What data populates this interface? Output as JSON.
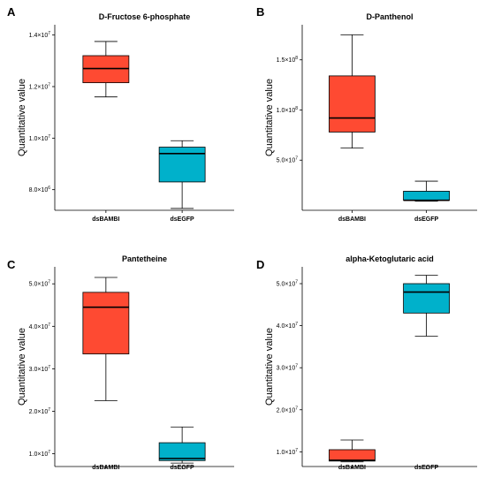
{
  "colors": {
    "dsBAMBI": "#fe4a32",
    "dsEGFP": "#00b1cb"
  },
  "chart_data": [
    {
      "letter": "A",
      "type": "box",
      "title": "D-Fructose 6-phosphate",
      "ylabel": "Quantitative value",
      "categories": [
        "dsBAMBI",
        "dsEGFP"
      ],
      "ylim": [
        7200000,
        14400000
      ],
      "yticks": [
        {
          "value": 8000000,
          "mantissa": "8.0×10",
          "exp": "6"
        },
        {
          "value": 10000000,
          "mantissa": "1.0×10",
          "exp": "7"
        },
        {
          "value": 12000000,
          "mantissa": "1.2×10",
          "exp": "7"
        },
        {
          "value": 14000000,
          "mantissa": "1.4×10",
          "exp": "7"
        }
      ],
      "boxes": [
        {
          "category": "dsBAMBI",
          "min": 11600000,
          "q1": 12150000,
          "median": 12700000,
          "q3": 13200000,
          "max": 13750000
        },
        {
          "category": "dsEGFP",
          "min": 7270000,
          "q1": 8300000,
          "median": 9400000,
          "q3": 9650000,
          "max": 9900000
        }
      ]
    },
    {
      "letter": "B",
      "type": "box",
      "title": "D-Panthenol",
      "ylabel": "Quantitative value",
      "categories": [
        "dsBAMBI",
        "dsEGFP"
      ],
      "ylim": [
        0,
        185000000
      ],
      "yticks": [
        {
          "value": 50000000,
          "mantissa": "5.0×10",
          "exp": "7"
        },
        {
          "value": 100000000,
          "mantissa": "1.0×10",
          "exp": "8"
        },
        {
          "value": 150000000,
          "mantissa": "1.5×10",
          "exp": "8"
        }
      ],
      "boxes": [
        {
          "category": "dsBAMBI",
          "min": 62000000,
          "q1": 78000000,
          "median": 92000000,
          "q3": 134000000,
          "max": 175000000
        },
        {
          "category": "dsEGFP",
          "min": 9000000,
          "q1": 10000000,
          "median": 10000000,
          "q3": 19000000,
          "max": 29000000
        }
      ]
    },
    {
      "letter": "C",
      "type": "box",
      "title": "Pantetheine",
      "ylabel": "Quantitative value",
      "categories": [
        "dsBAMBI",
        "dsEGFP"
      ],
      "ylim": [
        7000000,
        54000000
      ],
      "yticks": [
        {
          "value": 10000000,
          "mantissa": "1.0×10",
          "exp": "7"
        },
        {
          "value": 20000000,
          "mantissa": "2.0×10",
          "exp": "7"
        },
        {
          "value": 30000000,
          "mantissa": "3.0×10",
          "exp": "7"
        },
        {
          "value": 40000000,
          "mantissa": "4.0×10",
          "exp": "7"
        },
        {
          "value": 50000000,
          "mantissa": "5.0×10",
          "exp": "7"
        }
      ],
      "boxes": [
        {
          "category": "dsBAMBI",
          "min": 22500000,
          "q1": 33500000,
          "median": 44500000,
          "q3": 48000000,
          "max": 51500000
        },
        {
          "category": "dsEGFP",
          "min": 7800000,
          "q1": 8400000,
          "median": 8900000,
          "q3": 12600000,
          "max": 16300000
        }
      ]
    },
    {
      "letter": "D",
      "type": "box",
      "title": "alpha-Ketoglutaric acid",
      "ylabel": "Quantitative value",
      "categories": [
        "dsBAMBI",
        "dsEGFP"
      ],
      "ylim": [
        6500000,
        54000000
      ],
      "yticks": [
        {
          "value": 10000000,
          "mantissa": "1.0×10",
          "exp": "7"
        },
        {
          "value": 20000000,
          "mantissa": "2.0×10",
          "exp": "7"
        },
        {
          "value": 30000000,
          "mantissa": "3.0×10",
          "exp": "7"
        },
        {
          "value": 40000000,
          "mantissa": "4.0×10",
          "exp": "7"
        },
        {
          "value": 50000000,
          "mantissa": "5.0×10",
          "exp": "7"
        }
      ],
      "boxes": [
        {
          "category": "dsBAMBI",
          "min": 7600000,
          "q1": 7800000,
          "median": 8000000,
          "q3": 10500000,
          "max": 12800000
        },
        {
          "category": "dsEGFP",
          "min": 37500000,
          "q1": 43000000,
          "median": 48000000,
          "q3": 50000000,
          "max": 52000000
        }
      ]
    }
  ]
}
